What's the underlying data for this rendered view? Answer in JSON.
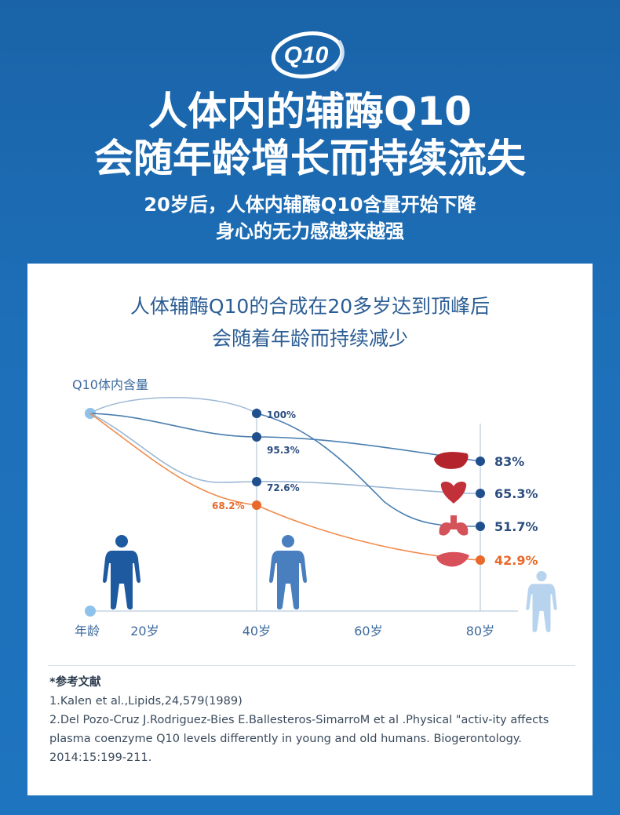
{
  "header": {
    "logo_text": "Q10",
    "title_lines": [
      "人体内的辅酶Q10",
      "会随年龄增长而持续流失"
    ],
    "subtitle_lines": [
      "20岁后，人体内辅酶Q10含量开始下降",
      "身心的无力感越来越强"
    ]
  },
  "card": {
    "title_lines": [
      "人体辅酶Q10的合成在20多岁达到顶峰后",
      "会随着年龄而持续减少"
    ]
  },
  "colors": {
    "background": "#1d6fb8",
    "line_blue": "#4a7fb0",
    "line_light": "#9cb8d4",
    "line_orange": "#f08a4b",
    "point_dark": "#1f4f8c",
    "point_orange": "#e8692a",
    "label_dark": "#2b4c7e",
    "label_orange": "#e8692a",
    "figure_dark": "#1d5aa0",
    "figure_mid": "#4a7fbf",
    "figure_light": "#b7d3ee"
  },
  "chart_data": {
    "type": "line",
    "ylabel": "Q10体内含量",
    "xlabel": "年龄",
    "x_ticks": [
      "20岁",
      "40岁",
      "60岁",
      "80岁"
    ],
    "series": [
      {
        "name": "",
        "color_key": "line_blue",
        "points": [
          {
            "age": 40,
            "label": "95.3%"
          },
          {
            "age": 80,
            "label": "83%"
          }
        ]
      },
      {
        "name": "",
        "color_key": "line_blue",
        "points": [
          {
            "age": 40,
            "label": "72.6%"
          },
          {
            "age": 80,
            "label": "65.3%"
          }
        ]
      },
      {
        "name": "",
        "color_key": "line_blue",
        "points": [
          {
            "age": 40,
            "label": "100%"
          },
          {
            "age": 80,
            "label": "51.7%"
          }
        ]
      },
      {
        "name": "",
        "color_key": "line_orange",
        "points": [
          {
            "age": 40,
            "label": "68.2%"
          },
          {
            "age": 80,
            "label": "42.9%"
          }
        ]
      }
    ],
    "organ_icons": [
      "liver-icon",
      "heart-icon",
      "lungs-icon",
      "pancreas-icon"
    ],
    "figure_icons": [
      "person-icon-20",
      "person-icon-40",
      "person-icon-80"
    ]
  },
  "references": {
    "heading": "*参考文献",
    "items": [
      "1.Kalen et al.,Lipids,24,579(1989)",
      "2.Del Pozo-Cruz J.Rodriguez-Bies E.Ballesteros-SimarroM et al .Physical \"activ-ity affects plasma coenzyme Q10 levels differently in young and old humans. Biogerontology. 2014:15:199-211."
    ]
  }
}
